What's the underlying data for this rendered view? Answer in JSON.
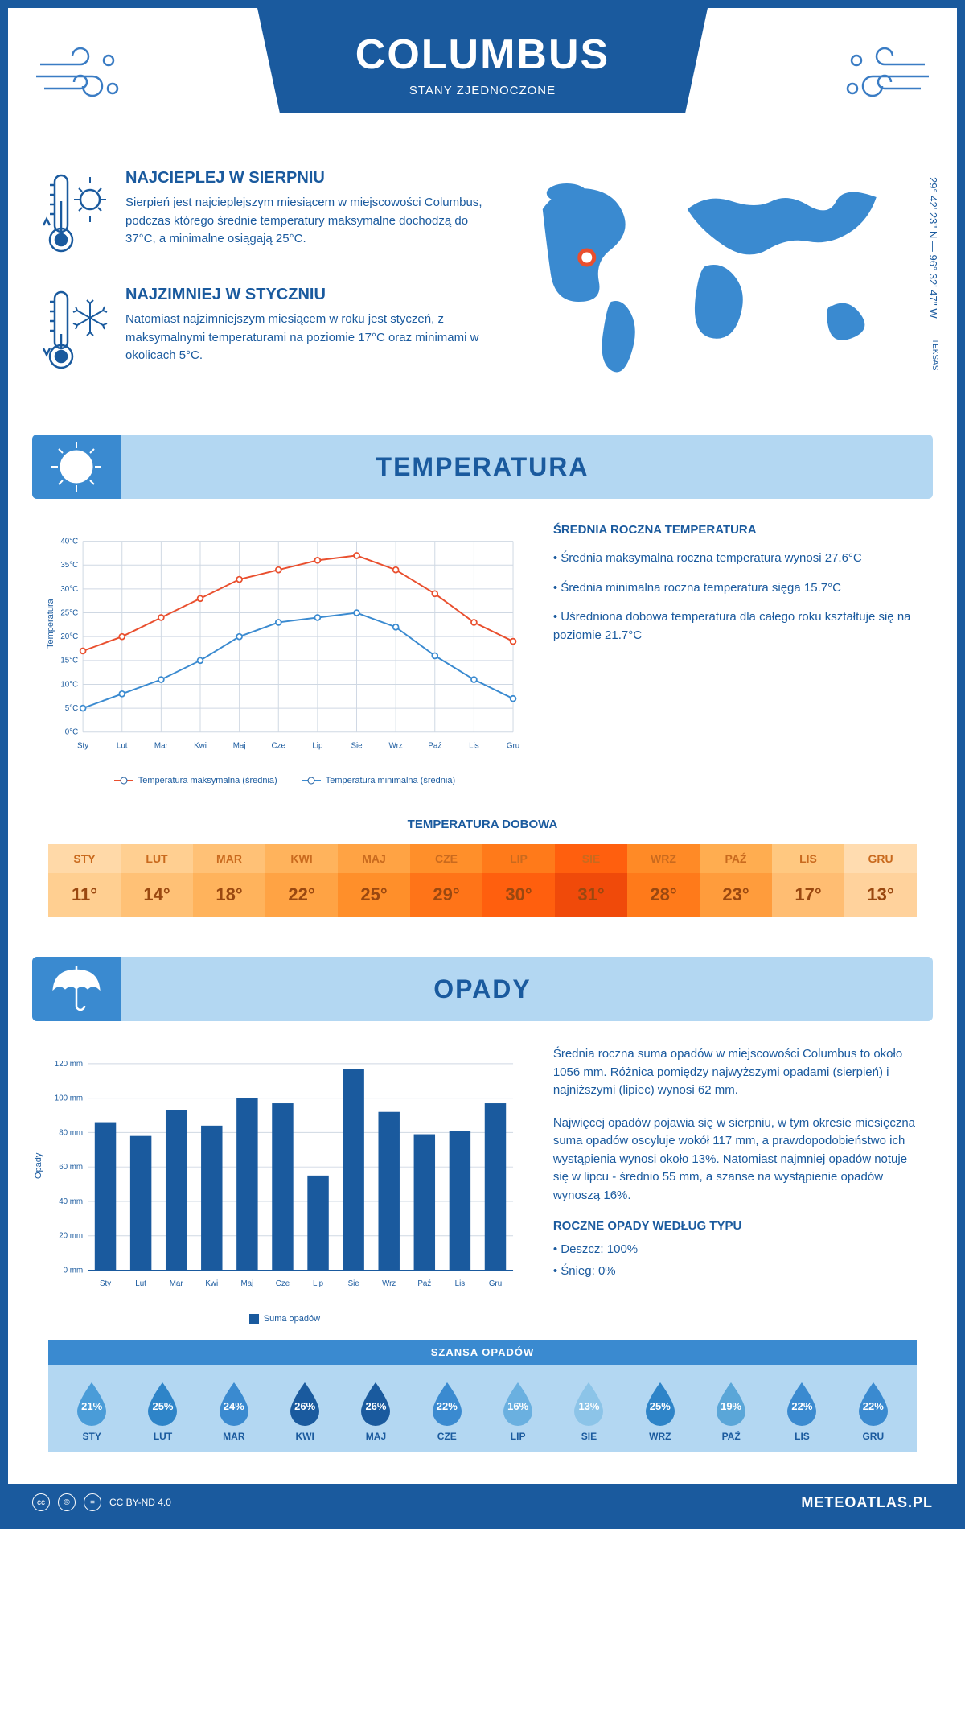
{
  "header": {
    "city": "COLUMBUS",
    "country": "STANY ZJEDNOCZONE",
    "coords": "29° 42' 23'' N — 96° 32' 47'' W",
    "region": "TEKSAS"
  },
  "intro": {
    "warmest": {
      "title": "NAJCIEPLEJ W SIERPNIU",
      "text": "Sierpień jest najcieplejszym miesiącem w miejscowości Columbus, podczas którego średnie temperatury maksymalne dochodzą do 37°C, a minimalne osiągają 25°C."
    },
    "coldest": {
      "title": "NAJZIMNIEJ W STYCZNIU",
      "text": "Natomiast najzimniejszym miesiącem w roku jest styczeń, z maksymalnymi temperaturami na poziomie 17°C oraz minimami w okolicach 5°C."
    }
  },
  "temperature": {
    "section_title": "TEMPERATURA",
    "months": [
      "Sty",
      "Lut",
      "Mar",
      "Kwi",
      "Maj",
      "Cze",
      "Lip",
      "Sie",
      "Wrz",
      "Paź",
      "Lis",
      "Gru"
    ],
    "max_series": [
      17,
      20,
      24,
      28,
      32,
      34,
      36,
      37,
      34,
      29,
      23,
      19
    ],
    "min_series": [
      5,
      8,
      11,
      15,
      20,
      23,
      24,
      25,
      22,
      16,
      11,
      7
    ],
    "max_color": "#e94f2e",
    "min_color": "#3a8ad0",
    "grid_color": "#cfd8e3",
    "background": "#ffffff",
    "ylim": [
      0,
      40
    ],
    "ytick_step": 5,
    "y_axis_label": "Temperatura",
    "legend_max": "Temperatura maksymalna (średnia)",
    "legend_min": "Temperatura minimalna (średnia)",
    "side": {
      "title": "ŚREDNIA ROCZNA TEMPERATURA",
      "bullet1": "• Średnia maksymalna roczna temperatura wynosi 27.6°C",
      "bullet2": "• Średnia minimalna roczna temperatura sięga 15.7°C",
      "bullet3": "• Uśredniona dobowa temperatura dla całego roku kształtuje się na poziomie 21.7°C"
    },
    "daily": {
      "title": "TEMPERATURA DOBOWA",
      "months": [
        "STY",
        "LUT",
        "MAR",
        "KWI",
        "MAJ",
        "CZE",
        "LIP",
        "SIE",
        "WRZ",
        "PAŹ",
        "LIS",
        "GRU"
      ],
      "values": [
        "11°",
        "14°",
        "18°",
        "22°",
        "25°",
        "29°",
        "30°",
        "31°",
        "28°",
        "23°",
        "17°",
        "13°"
      ],
      "hdr_colors": [
        "#ffd9a8",
        "#ffcf91",
        "#ffc176",
        "#ffb35c",
        "#ffa344",
        "#ff8f2a",
        "#ff7a1a",
        "#ff5f0e",
        "#ff8a26",
        "#ffad50",
        "#ffc880",
        "#ffdcb0"
      ],
      "val_colors": [
        "#ffcf91",
        "#ffc176",
        "#ffb35c",
        "#ffa344",
        "#ff8f2a",
        "#ff7418",
        "#ff5f0e",
        "#f04a0a",
        "#ff7a1a",
        "#ff9c3c",
        "#ffbd72",
        "#ffd29c"
      ],
      "hdr_text": "#c96a1e",
      "val_text": "#9a4810"
    }
  },
  "precip": {
    "section_title": "OPADY",
    "months": [
      "Sty",
      "Lut",
      "Mar",
      "Kwi",
      "Maj",
      "Cze",
      "Lip",
      "Sie",
      "Wrz",
      "Paź",
      "Lis",
      "Gru"
    ],
    "values": [
      86,
      78,
      93,
      84,
      100,
      97,
      55,
      117,
      92,
      79,
      81,
      97
    ],
    "bar_color": "#1a5a9e",
    "grid_color": "#cfd8e3",
    "ylim": [
      0,
      120
    ],
    "ytick_step": 20,
    "y_axis_label": "Opady",
    "legend": "Suma opadów",
    "side": {
      "p1": "Średnia roczna suma opadów w miejscowości Columbus to około 1056 mm. Różnica pomiędzy najwyższymi opadami (sierpień) i najniższymi (lipiec) wynosi 62 mm.",
      "p2": "Najwięcej opadów pojawia się w sierpniu, w tym okresie miesięczna suma opadów oscyluje wokół 117 mm, a prawdopodobieństwo ich wystąpienia wynosi około 13%. Natomiast najmniej opadów notuje się w lipcu - średnio 55 mm, a szanse na wystąpienie opadów wynoszą 16%."
    },
    "chance": {
      "title": "SZANSA OPADÓW",
      "months": [
        "STY",
        "LUT",
        "MAR",
        "KWI",
        "MAJ",
        "CZE",
        "LIP",
        "SIE",
        "WRZ",
        "PAŹ",
        "LIS",
        "GRU"
      ],
      "values": [
        "21%",
        "25%",
        "24%",
        "26%",
        "26%",
        "22%",
        "16%",
        "13%",
        "25%",
        "19%",
        "22%",
        "22%"
      ],
      "colors": [
        "#4a9cd8",
        "#2e84c8",
        "#3a8ad0",
        "#1a5a9e",
        "#1a5a9e",
        "#3a8ad0",
        "#6ab0e0",
        "#8cc4e8",
        "#2e84c8",
        "#5aa6d8",
        "#3a8ad0",
        "#3a8ad0"
      ]
    },
    "by_type": {
      "title": "ROCZNE OPADY WEDŁUG TYPU",
      "rain": "• Deszcz: 100%",
      "snow": "• Śnieg: 0%"
    }
  },
  "footer": {
    "license": "CC BY-ND 4.0",
    "site": "METEOATLAS.PL"
  }
}
